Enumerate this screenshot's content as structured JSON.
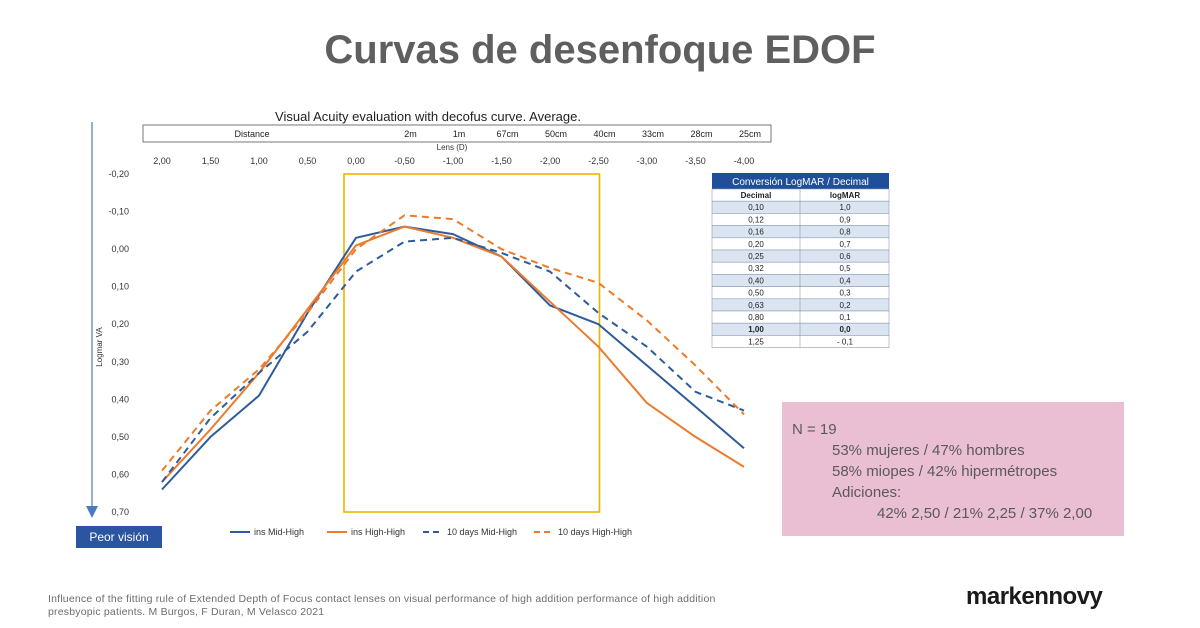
{
  "slide": {
    "title": "Curvas de desenfoque EDOF",
    "worse_vision_label": "Peor visión",
    "citation": "Influence of the fitting rule of Extended Depth of Focus contact lenses on visual performance of high addition performance of high addition presbyopic patients. M Burgos, F Duran, M Velasco 2021",
    "logo": "markennovy"
  },
  "info_box": {
    "n": "N = 19",
    "line1": "53% mujeres / 47% hombres",
    "line2": "58% miopes / 42% hipermétropes",
    "line3": "Adiciones:",
    "line4": "42% 2,50 / 21% 2,25 / 37% 2,00"
  },
  "conversion_table": {
    "title": "Conversión LogMAR / Decimal",
    "headers": [
      "Decimal",
      "logMAR"
    ],
    "rows": [
      [
        "0,10",
        "1,0"
      ],
      [
        "0,12",
        "0,9"
      ],
      [
        "0,16",
        "0,8"
      ],
      [
        "0,20",
        "0,7"
      ],
      [
        "0,25",
        "0,6"
      ],
      [
        "0,32",
        "0,5"
      ],
      [
        "0,40",
        "0,4"
      ],
      [
        "0,50",
        "0,3"
      ],
      [
        "0,63",
        "0,2"
      ],
      [
        "0,80",
        "0,1"
      ],
      [
        "1,00",
        "0,0"
      ],
      [
        "1,25",
        "- 0,1"
      ]
    ],
    "bold_row": 10
  },
  "chart_data": {
    "type": "line",
    "title": "Visual Acuity evaluation with decofus curve. Average.",
    "distance_label": "Distance",
    "distance_ticks": [
      "",
      "",
      "",
      "",
      "",
      "2m",
      "1m",
      "67cm",
      "50cm",
      "40cm",
      "33cm",
      "28cm",
      "25cm"
    ],
    "xlabel": "Lens (D)",
    "ylabel": "Logmar VA",
    "x_tick_labels": [
      "2,00",
      "1,50",
      "1,00",
      "0,50",
      "0,00",
      "-0,50",
      "-1,00",
      "-1,50",
      "-2,00",
      "-2,50",
      "-3,00",
      "-3,50",
      "-4,00"
    ],
    "y_tick_labels": [
      "-0,20",
      "-0,10",
      "0,00",
      "0,10",
      "0,20",
      "0,30",
      "0,40",
      "0,50",
      "0,60",
      "0,70"
    ],
    "x": [
      2.0,
      1.5,
      1.0,
      0.5,
      0.0,
      -0.5,
      -1.0,
      -1.5,
      -2.0,
      -2.5,
      -3.0,
      -3.5,
      -4.0
    ],
    "ylim": [
      -0.2,
      0.7
    ],
    "y_inverted": true,
    "highlight_range_x": [
      0.0,
      -2.5
    ],
    "series": [
      {
        "name": "ins Mid-High",
        "color": "#2e5c9a",
        "dash": false,
        "values": [
          0.64,
          0.5,
          0.39,
          0.17,
          -0.03,
          -0.06,
          -0.04,
          0.02,
          0.15,
          0.2,
          0.31,
          0.42,
          0.53
        ]
      },
      {
        "name": "ins High-High",
        "color": "#ec7b2c",
        "dash": false,
        "values": [
          0.62,
          0.48,
          0.33,
          0.16,
          -0.01,
          -0.06,
          -0.03,
          0.02,
          0.14,
          0.26,
          0.41,
          0.5,
          0.58
        ]
      },
      {
        "name": "10 days Mid-High",
        "color": "#2e5c9a",
        "dash": true,
        "values": [
          0.62,
          0.45,
          0.33,
          0.22,
          0.06,
          -0.02,
          -0.03,
          0.01,
          0.06,
          0.17,
          0.26,
          0.38,
          0.43
        ]
      },
      {
        "name": "10 days High-High",
        "color": "#ec7b2c",
        "dash": true,
        "values": [
          0.59,
          0.43,
          0.32,
          0.17,
          0.0,
          -0.09,
          -0.08,
          0.0,
          0.05,
          0.09,
          0.19,
          0.31,
          0.44
        ]
      }
    ],
    "legend_position": "bottom",
    "grid": false
  }
}
